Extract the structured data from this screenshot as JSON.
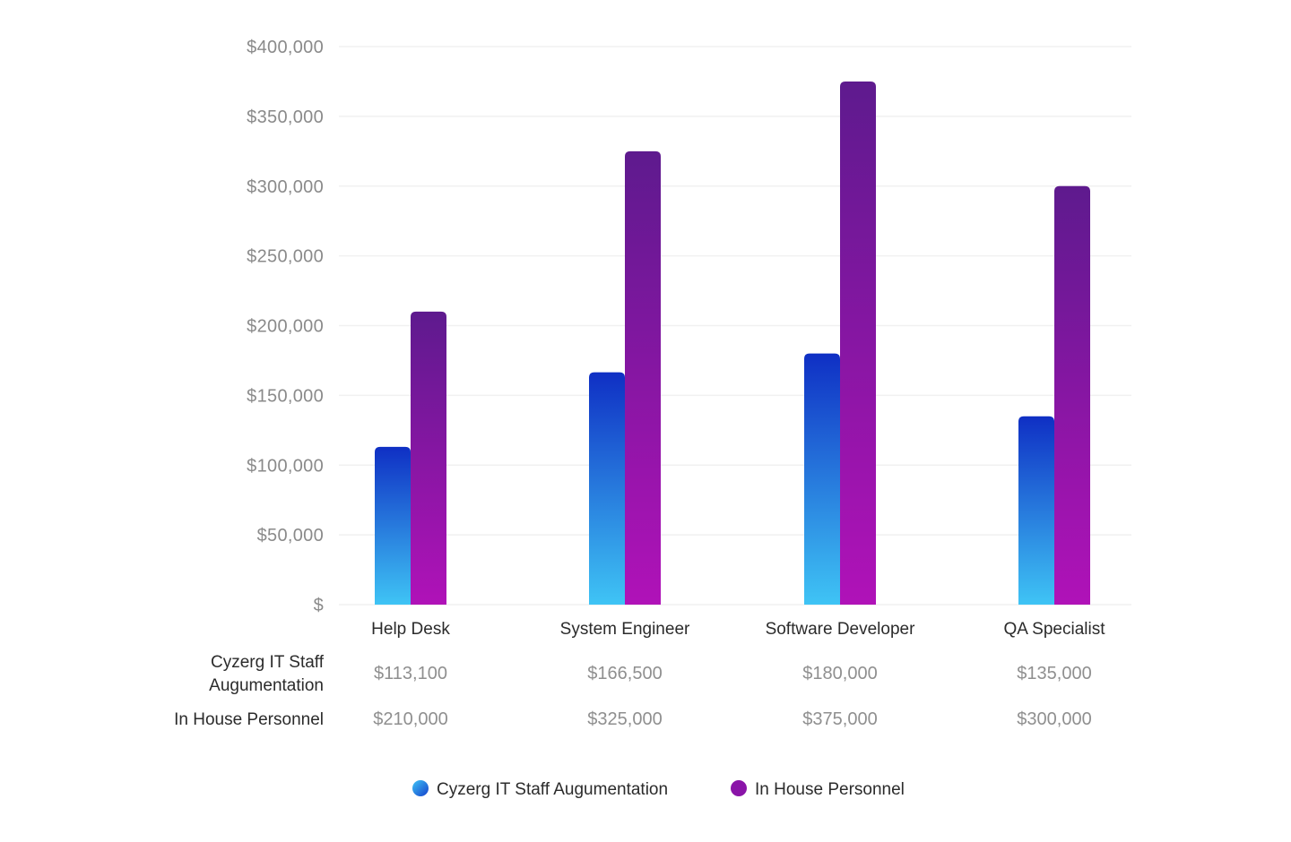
{
  "chart_data": {
    "type": "bar",
    "title": "",
    "xlabel": "",
    "ylabel": "",
    "categories": [
      "Help Desk",
      "System Engineer",
      "Software Developer",
      "QA Specialist"
    ],
    "series": [
      {
        "name": "Cyzerg IT Staff Augumentation",
        "row_label_lines": [
          "Cyzerg IT Staff",
          "Augumentation"
        ],
        "values": [
          113100,
          166500,
          180000,
          135000
        ],
        "value_labels": [
          "$113,100",
          "$166,500",
          "$180,000",
          "$135,000"
        ],
        "gradient": {
          "top": "#0f2fc4",
          "bottom": "#3fc4f5"
        },
        "legend_color": "#2a7be8"
      },
      {
        "name": "In House Personnel",
        "row_label_lines": [
          "In House Personnel"
        ],
        "values": [
          210000,
          325000,
          375000,
          300000
        ],
        "value_labels": [
          "$210,000",
          "$325,000",
          "$375,000",
          "$300,000"
        ],
        "gradient": {
          "top": "#5e1a8e",
          "bottom": "#b012b8"
        },
        "legend_color": "#8a14a8"
      }
    ],
    "ylim": [
      0,
      400000
    ],
    "yticks": [
      0,
      50000,
      100000,
      150000,
      200000,
      250000,
      300000,
      350000,
      400000
    ],
    "ytick_labels": [
      "$",
      "$50,000",
      "$100,000",
      "$150,000",
      "$200,000",
      "$250,000",
      "$300,000",
      "$350,000",
      "$400,000"
    ],
    "grid": true,
    "data_table": true,
    "legend_position": "bottom-center"
  }
}
